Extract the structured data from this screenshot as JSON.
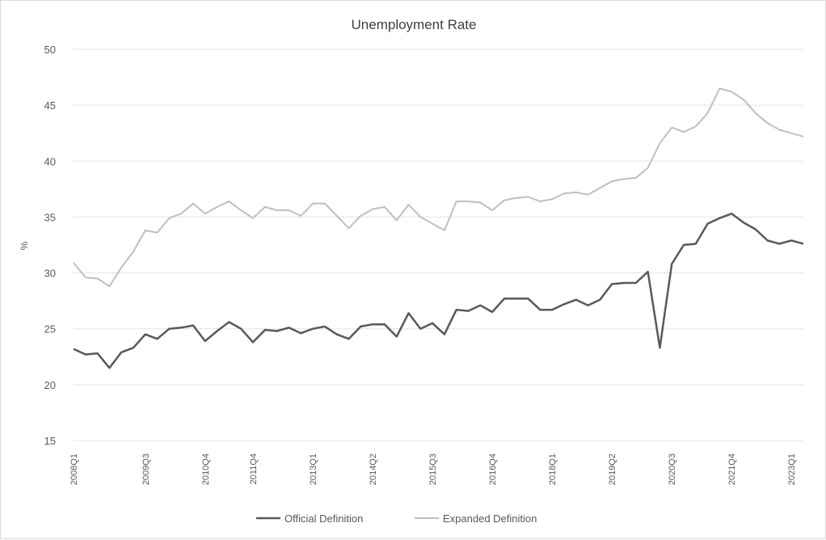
{
  "chart_data": {
    "type": "line",
    "title": "Unemployment Rate",
    "xlabel": "",
    "ylabel": "%",
    "ylim": [
      15,
      50
    ],
    "yticks": [
      15,
      20,
      25,
      30,
      35,
      40,
      45,
      50
    ],
    "grid": true,
    "legend_position": "bottom",
    "tick_labels": [
      "2008Q1",
      "2009Q3",
      "2010Q4",
      "2011Q4",
      "2013Q1",
      "2014Q2",
      "2015Q3",
      "2016Q4",
      "2018Q1",
      "2019Q2",
      "2020Q3",
      "2021Q4",
      "2023Q1"
    ],
    "x": [
      "2008Q1",
      "2008Q2",
      "2008Q3",
      "2008Q4",
      "2009Q1",
      "2009Q2",
      "2009Q3",
      "2009Q4",
      "2010Q1",
      "2010Q2",
      "2010Q3",
      "2010Q4",
      "2011Q1",
      "2011Q2",
      "2011Q3",
      "2011Q4",
      "2012Q1",
      "2012Q2",
      "2012Q3",
      "2012Q4",
      "2013Q1",
      "2013Q2",
      "2013Q3",
      "2013Q4",
      "2014Q1",
      "2014Q2",
      "2014Q3",
      "2014Q4",
      "2015Q1",
      "2015Q2",
      "2015Q3",
      "2015Q4",
      "2016Q1",
      "2016Q2",
      "2016Q3",
      "2016Q4",
      "2017Q1",
      "2017Q2",
      "2017Q3",
      "2017Q4",
      "2018Q1",
      "2018Q2",
      "2018Q3",
      "2018Q4",
      "2019Q1",
      "2019Q2",
      "2019Q3",
      "2019Q4",
      "2020Q1",
      "2020Q2",
      "2020Q3",
      "2020Q4",
      "2021Q1",
      "2021Q2",
      "2021Q3",
      "2021Q4",
      "2022Q1",
      "2022Q2",
      "2022Q3",
      "2022Q4",
      "2023Q1",
      "2023Q2"
    ],
    "series": [
      {
        "name": "Official Definition",
        "color": "#595959",
        "values": [
          23.2,
          22.7,
          22.8,
          21.5,
          22.9,
          23.3,
          24.5,
          24.1,
          25.0,
          25.1,
          25.3,
          23.9,
          24.8,
          25.6,
          25.0,
          23.8,
          24.9,
          24.8,
          25.1,
          24.6,
          25.0,
          25.2,
          24.5,
          24.1,
          25.2,
          25.4,
          25.4,
          24.3,
          26.4,
          25.0,
          25.5,
          24.5,
          26.7,
          26.6,
          27.1,
          26.5,
          27.7,
          27.7,
          27.7,
          26.7,
          26.7,
          27.2,
          27.6,
          27.1,
          27.6,
          29.0,
          29.1,
          29.1,
          30.1,
          23.3,
          30.8,
          32.5,
          32.6,
          34.4,
          34.9,
          35.3,
          34.5,
          33.9,
          32.9,
          32.6,
          32.9,
          32.6
        ]
      },
      {
        "name": "Expanded Definition",
        "color": "#bfbfbf",
        "values": [
          30.9,
          29.6,
          29.5,
          28.8,
          30.5,
          31.9,
          33.8,
          33.6,
          34.9,
          35.3,
          36.2,
          35.3,
          35.9,
          36.4,
          35.6,
          34.9,
          35.9,
          35.6,
          35.6,
          35.1,
          36.2,
          36.2,
          35.1,
          34.0,
          35.1,
          35.7,
          35.9,
          34.7,
          36.1,
          35.0,
          34.4,
          33.8,
          36.4,
          36.4,
          36.3,
          35.6,
          36.5,
          36.7,
          36.8,
          36.4,
          36.6,
          37.1,
          37.2,
          37.0,
          37.6,
          38.2,
          38.4,
          38.5,
          39.4,
          41.6,
          43.0,
          42.6,
          43.1,
          44.3,
          46.5,
          46.2,
          45.5,
          44.3,
          43.4,
          42.8,
          42.5,
          42.2
        ]
      }
    ]
  }
}
